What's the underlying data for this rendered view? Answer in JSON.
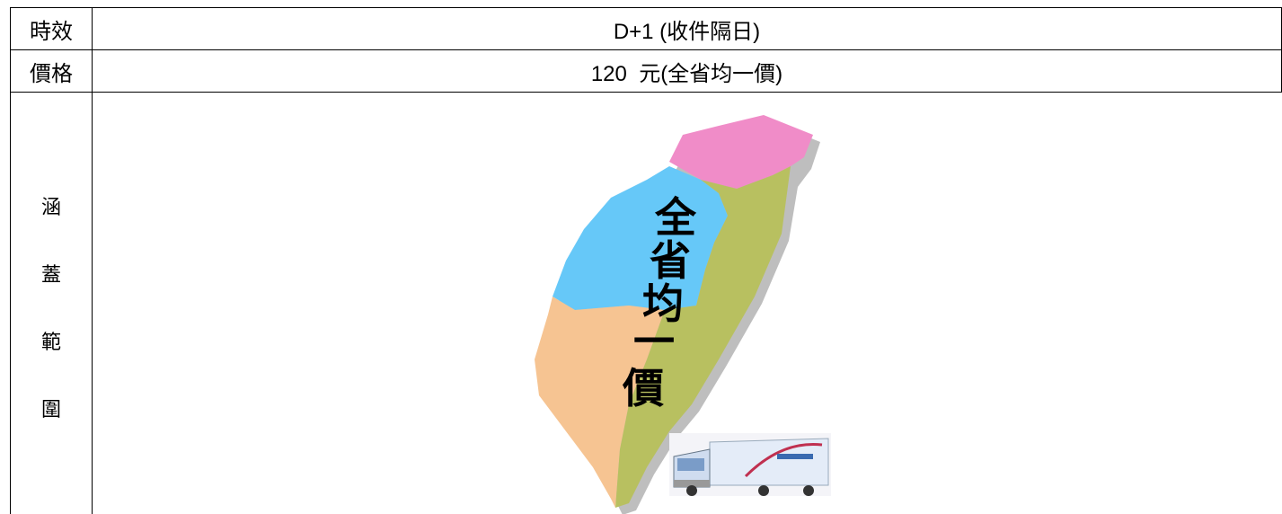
{
  "table": {
    "rows": [
      {
        "label": "時效",
        "value": "D+1 (收件隔日)"
      },
      {
        "label": "價格",
        "value": "120  元(全省均一價)"
      }
    ]
  },
  "coverage": {
    "label_chars": [
      "涵",
      "蓋",
      "範",
      "圍"
    ],
    "map_text": [
      "全",
      "省",
      "均",
      "一",
      "價"
    ]
  }
}
